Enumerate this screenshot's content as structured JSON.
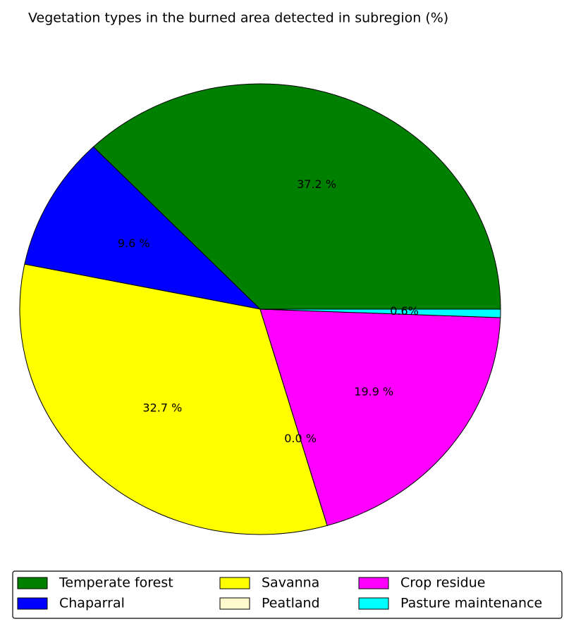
{
  "chart_data": {
    "type": "pie",
    "title": "Vegetation types in the burned area detected in subregion (%)",
    "categories": [
      "Temperate forest",
      "Chaparral",
      "Savanna",
      "Peatland",
      "Crop residue",
      "Pasture maintenance"
    ],
    "values": [
      37.2,
      9.6,
      32.7,
      0.0,
      19.9,
      0.6
    ],
    "value_labels": [
      "37.2 %",
      "9.6 %",
      "32.7 %",
      "0.0 %",
      "19.9 %",
      "0.6%"
    ],
    "colors": [
      "#008000",
      "#0000ff",
      "#ffff00",
      "#fffacd",
      "#ff00ff",
      "#00ffff"
    ],
    "legend": "bottom"
  }
}
